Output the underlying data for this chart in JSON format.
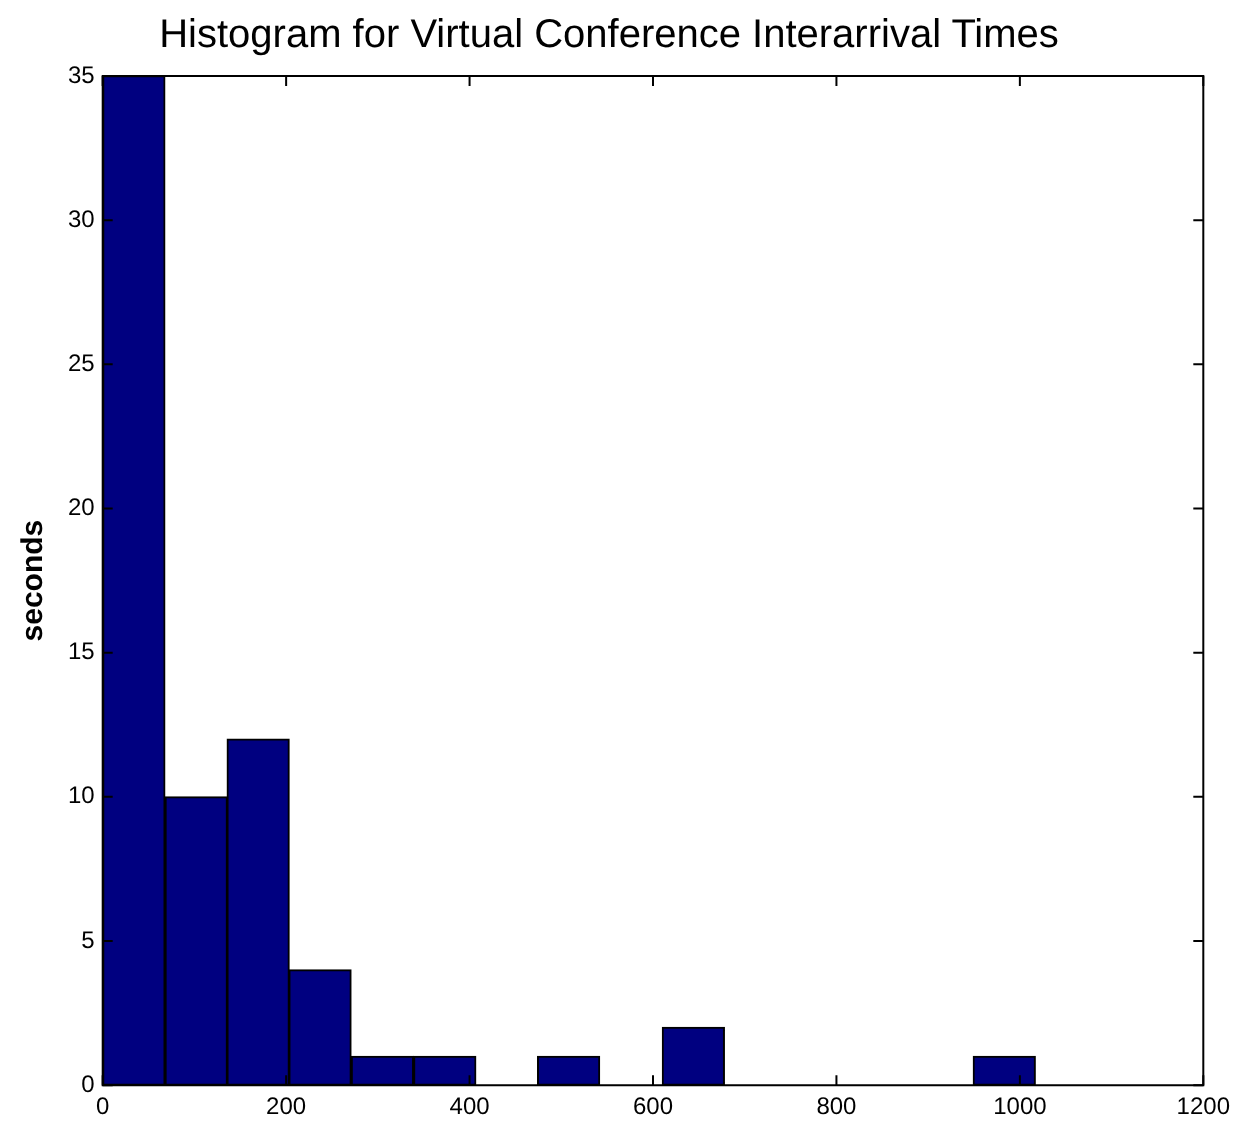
{
  "chart_data": {
    "type": "histogram",
    "title": "Histogram for Virtual Conference Interarrival Times",
    "ylabel": "seconds",
    "bins": [
      0,
      68,
      136,
      203,
      271,
      339,
      407,
      474,
      542,
      610,
      678,
      745,
      813,
      881,
      949,
      1017
    ],
    "values": [
      35,
      10,
      12,
      4,
      1,
      1,
      0,
      1,
      0,
      2,
      0,
      0,
      0,
      0,
      1
    ],
    "color": "#000080",
    "xlim": [
      0,
      1200
    ],
    "xticks": [
      0,
      200,
      400,
      600,
      800,
      1000,
      1200
    ],
    "ylim": [
      0,
      35
    ],
    "yticks": [
      0,
      5,
      10,
      15,
      20,
      25,
      30,
      35
    ],
    "grid": false,
    "legend": false
  }
}
